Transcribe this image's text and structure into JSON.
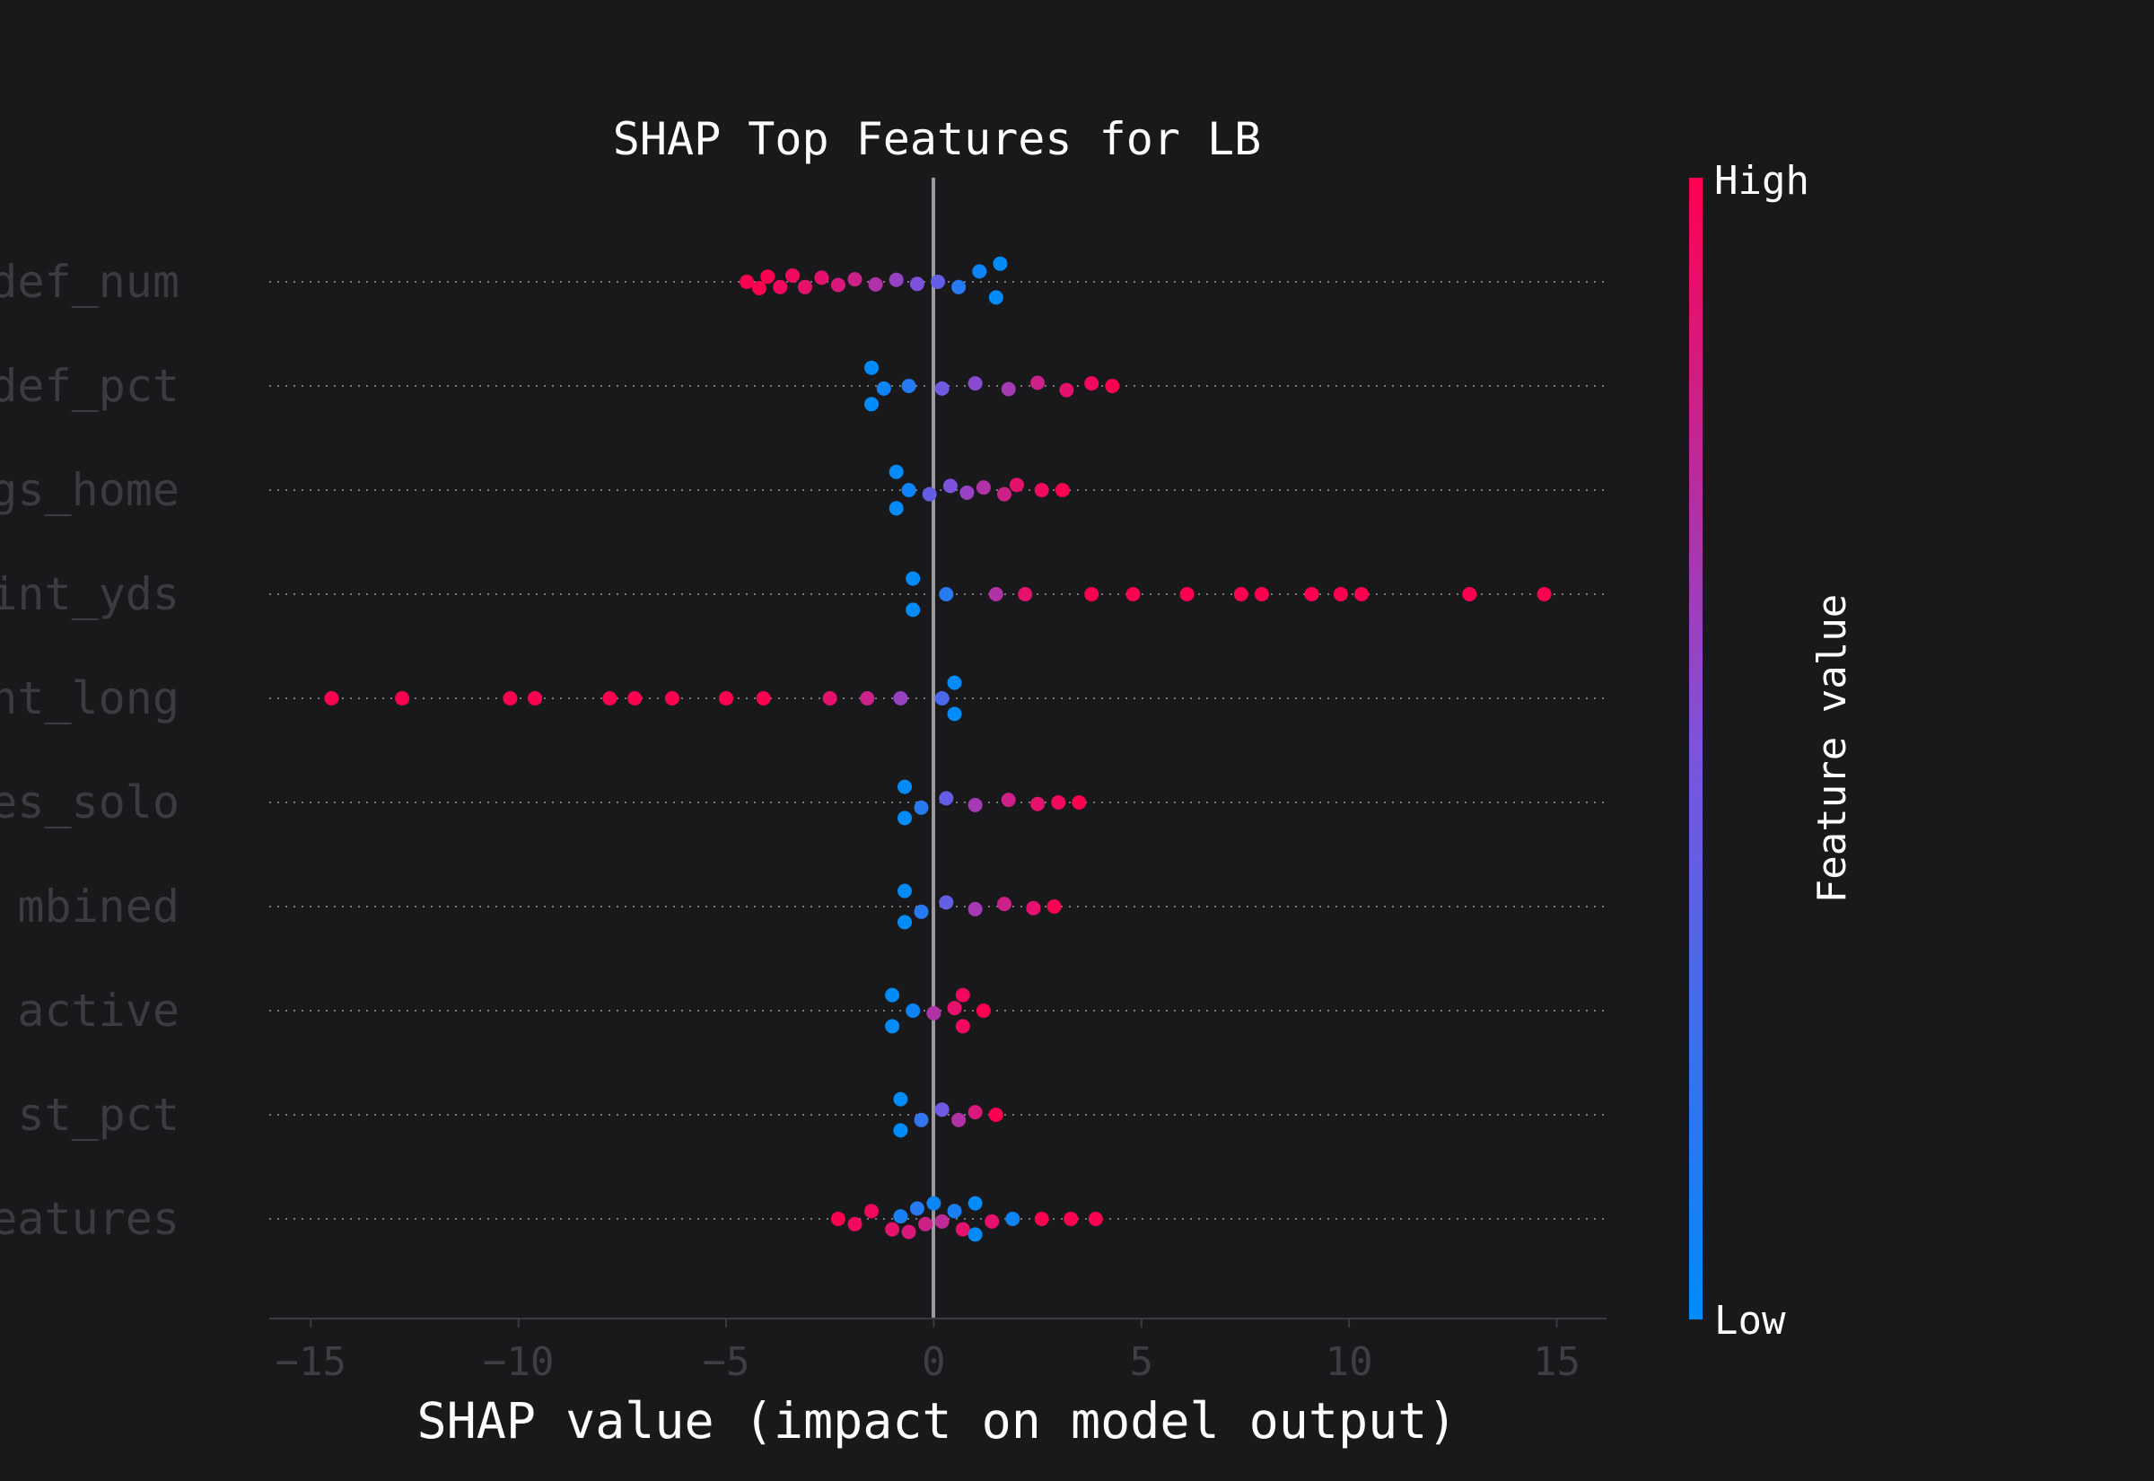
{
  "chart_data": {
    "type": "scatter",
    "subtype": "shap-beeswarm",
    "title": "SHAP Top Features for LB",
    "xlabel": "SHAP value (impact on model output)",
    "xlim": [
      -16,
      16.2
    ],
    "xticks": [
      -15,
      -10,
      -5,
      0,
      5,
      10,
      15
    ],
    "xtick_labels": [
      "−15",
      "−10",
      "−5",
      "0",
      "5",
      "10",
      "15"
    ],
    "grid": "horizontal dotted per feature row",
    "colorbar": {
      "label": "Feature value",
      "high_label": "High",
      "low_label": "Low",
      "low_color": "#008bfb",
      "high_color": "#ff0051"
    },
    "features": [
      {
        "name": "def_num",
        "points": [
          {
            "x": -4.5,
            "y": 0,
            "v": 1
          },
          {
            "x": -4.2,
            "y": 0.12,
            "v": 1
          },
          {
            "x": -4.0,
            "y": -0.1,
            "v": 1
          },
          {
            "x": -3.7,
            "y": 0.1,
            "v": 0.95
          },
          {
            "x": -3.4,
            "y": -0.12,
            "v": 0.95
          },
          {
            "x": -3.1,
            "y": 0.1,
            "v": 0.9
          },
          {
            "x": -2.7,
            "y": -0.08,
            "v": 0.9
          },
          {
            "x": -2.3,
            "y": 0.06,
            "v": 0.85
          },
          {
            "x": -1.9,
            "y": -0.05,
            "v": 0.8
          },
          {
            "x": -1.4,
            "y": 0.05,
            "v": 0.7
          },
          {
            "x": -0.9,
            "y": -0.04,
            "v": 0.6
          },
          {
            "x": -0.4,
            "y": 0.04,
            "v": 0.5
          },
          {
            "x": 0.1,
            "y": 0,
            "v": 0.4
          },
          {
            "x": 0.6,
            "y": 0.1,
            "v": 0.15
          },
          {
            "x": 1.1,
            "y": -0.2,
            "v": 0.05
          },
          {
            "x": 1.5,
            "y": 0.3,
            "v": 0
          },
          {
            "x": 1.6,
            "y": -0.35,
            "v": 0
          }
        ]
      },
      {
        "name": "def_pct",
        "points": [
          {
            "x": -1.5,
            "y": 0.35,
            "v": 0
          },
          {
            "x": -1.5,
            "y": -0.35,
            "v": 0
          },
          {
            "x": -1.2,
            "y": 0.05,
            "v": 0.05
          },
          {
            "x": -0.6,
            "y": 0,
            "v": 0.15
          },
          {
            "x": 0.2,
            "y": 0.05,
            "v": 0.45
          },
          {
            "x": 1.0,
            "y": -0.05,
            "v": 0.55
          },
          {
            "x": 1.8,
            "y": 0.06,
            "v": 0.65
          },
          {
            "x": 2.5,
            "y": -0.06,
            "v": 0.8
          },
          {
            "x": 3.2,
            "y": 0.08,
            "v": 0.9
          },
          {
            "x": 3.8,
            "y": -0.05,
            "v": 0.95
          },
          {
            "x": 4.3,
            "y": 0,
            "v": 1
          }
        ]
      },
      {
        "name": "gs_home",
        "points": [
          {
            "x": -0.9,
            "y": 0.35,
            "v": 0
          },
          {
            "x": -0.9,
            "y": -0.35,
            "v": 0
          },
          {
            "x": -0.6,
            "y": 0,
            "v": 0.05
          },
          {
            "x": -0.1,
            "y": 0.08,
            "v": 0.4
          },
          {
            "x": 0.4,
            "y": -0.08,
            "v": 0.5
          },
          {
            "x": 0.8,
            "y": 0.05,
            "v": 0.6
          },
          {
            "x": 1.2,
            "y": -0.05,
            "v": 0.7
          },
          {
            "x": 1.7,
            "y": 0.08,
            "v": 0.8
          },
          {
            "x": 2.0,
            "y": -0.1,
            "v": 0.9
          },
          {
            "x": 2.6,
            "y": 0,
            "v": 0.95
          },
          {
            "x": 3.1,
            "y": 0,
            "v": 1
          }
        ]
      },
      {
        "name": "int_yds",
        "points": [
          {
            "x": -0.5,
            "y": 0.3,
            "v": 0
          },
          {
            "x": -0.5,
            "y": -0.3,
            "v": 0
          },
          {
            "x": 0.3,
            "y": 0,
            "v": 0.15
          },
          {
            "x": 1.5,
            "y": 0,
            "v": 0.7
          },
          {
            "x": 2.2,
            "y": 0,
            "v": 0.9
          },
          {
            "x": 3.8,
            "y": 0,
            "v": 1
          },
          {
            "x": 4.8,
            "y": 0,
            "v": 1
          },
          {
            "x": 6.1,
            "y": 0,
            "v": 1
          },
          {
            "x": 7.4,
            "y": 0,
            "v": 1
          },
          {
            "x": 7.9,
            "y": 0,
            "v": 1
          },
          {
            "x": 9.1,
            "y": 0,
            "v": 1
          },
          {
            "x": 9.8,
            "y": 0,
            "v": 1
          },
          {
            "x": 10.3,
            "y": 0,
            "v": 1
          },
          {
            "x": 12.9,
            "y": 0,
            "v": 1
          },
          {
            "x": 14.7,
            "y": 0,
            "v": 1
          }
        ]
      },
      {
        "name": "int_long",
        "points": [
          {
            "x": -14.5,
            "y": 0,
            "v": 1
          },
          {
            "x": -12.8,
            "y": 0,
            "v": 1
          },
          {
            "x": -10.2,
            "y": 0,
            "v": 1
          },
          {
            "x": -9.6,
            "y": 0,
            "v": 1
          },
          {
            "x": -7.8,
            "y": 0,
            "v": 1
          },
          {
            "x": -7.2,
            "y": 0,
            "v": 1
          },
          {
            "x": -6.3,
            "y": 0,
            "v": 1
          },
          {
            "x": -5.0,
            "y": 0,
            "v": 1
          },
          {
            "x": -4.1,
            "y": 0,
            "v": 1
          },
          {
            "x": -2.5,
            "y": 0,
            "v": 0.9
          },
          {
            "x": -1.6,
            "y": 0,
            "v": 0.8
          },
          {
            "x": -0.8,
            "y": 0,
            "v": 0.6
          },
          {
            "x": 0.2,
            "y": 0,
            "v": 0.3
          },
          {
            "x": 0.5,
            "y": 0.3,
            "v": 0
          },
          {
            "x": 0.5,
            "y": -0.3,
            "v": 0
          }
        ]
      },
      {
        "name": "es_solo",
        "points": [
          {
            "x": -0.7,
            "y": 0.3,
            "v": 0
          },
          {
            "x": -0.7,
            "y": -0.3,
            "v": 0
          },
          {
            "x": -0.3,
            "y": 0.1,
            "v": 0.15
          },
          {
            "x": 0.3,
            "y": -0.08,
            "v": 0.4
          },
          {
            "x": 1.0,
            "y": 0.05,
            "v": 0.65
          },
          {
            "x": 1.8,
            "y": -0.05,
            "v": 0.8
          },
          {
            "x": 2.5,
            "y": 0.03,
            "v": 0.9
          },
          {
            "x": 3.0,
            "y": 0,
            "v": 0.95
          },
          {
            "x": 3.5,
            "y": 0,
            "v": 1
          }
        ]
      },
      {
        "name": "mbined",
        "points": [
          {
            "x": -0.7,
            "y": 0.3,
            "v": 0
          },
          {
            "x": -0.7,
            "y": -0.3,
            "v": 0
          },
          {
            "x": -0.3,
            "y": 0.1,
            "v": 0.15
          },
          {
            "x": 0.3,
            "y": -0.08,
            "v": 0.4
          },
          {
            "x": 1.0,
            "y": 0.05,
            "v": 0.65
          },
          {
            "x": 1.7,
            "y": -0.05,
            "v": 0.8
          },
          {
            "x": 2.4,
            "y": 0.03,
            "v": 0.9
          },
          {
            "x": 2.9,
            "y": 0,
            "v": 1
          }
        ]
      },
      {
        "name": "active",
        "points": [
          {
            "x": -1.0,
            "y": 0.3,
            "v": 0
          },
          {
            "x": -1.0,
            "y": -0.3,
            "v": 0
          },
          {
            "x": -0.5,
            "y": 0,
            "v": 0.05
          },
          {
            "x": 0.0,
            "y": 0.05,
            "v": 0.7
          },
          {
            "x": 0.5,
            "y": -0.05,
            "v": 0.9
          },
          {
            "x": 0.7,
            "y": 0.3,
            "v": 0.95
          },
          {
            "x": 0.7,
            "y": -0.3,
            "v": 0.95
          },
          {
            "x": 1.2,
            "y": 0,
            "v": 1
          }
        ]
      },
      {
        "name": "st_pct",
        "points": [
          {
            "x": -0.8,
            "y": 0.3,
            "v": 0
          },
          {
            "x": -0.8,
            "y": -0.3,
            "v": 0
          },
          {
            "x": -0.3,
            "y": 0.1,
            "v": 0.2
          },
          {
            "x": 0.2,
            "y": -0.1,
            "v": 0.45
          },
          {
            "x": 0.6,
            "y": 0.1,
            "v": 0.7
          },
          {
            "x": 1.0,
            "y": -0.05,
            "v": 0.85
          },
          {
            "x": 1.5,
            "y": 0,
            "v": 1
          }
        ]
      },
      {
        "name": "eatures",
        "points": [
          {
            "x": -2.3,
            "y": 0,
            "v": 1
          },
          {
            "x": -1.9,
            "y": 0.1,
            "v": 0.95
          },
          {
            "x": -1.5,
            "y": -0.15,
            "v": 0.95
          },
          {
            "x": -1.0,
            "y": 0.2,
            "v": 0.9
          },
          {
            "x": -0.8,
            "y": -0.05,
            "v": 0.1
          },
          {
            "x": -0.6,
            "y": 0.25,
            "v": 0.85
          },
          {
            "x": -0.4,
            "y": -0.2,
            "v": 0.15
          },
          {
            "x": -0.2,
            "y": 0.1,
            "v": 0.8
          },
          {
            "x": 0.0,
            "y": -0.3,
            "v": 0.05
          },
          {
            "x": 0.2,
            "y": 0.05,
            "v": 0.75
          },
          {
            "x": 0.5,
            "y": -0.15,
            "v": 0.1
          },
          {
            "x": 0.7,
            "y": 0.2,
            "v": 0.9
          },
          {
            "x": 1.0,
            "y": 0.3,
            "v": 0
          },
          {
            "x": 1.0,
            "y": -0.3,
            "v": 0
          },
          {
            "x": 1.4,
            "y": 0.05,
            "v": 0.9
          },
          {
            "x": 1.9,
            "y": 0,
            "v": 0.05
          },
          {
            "x": 2.6,
            "y": 0,
            "v": 1
          },
          {
            "x": 3.3,
            "y": 0,
            "v": 1
          },
          {
            "x": 3.9,
            "y": 0,
            "v": 1
          }
        ]
      }
    ]
  }
}
